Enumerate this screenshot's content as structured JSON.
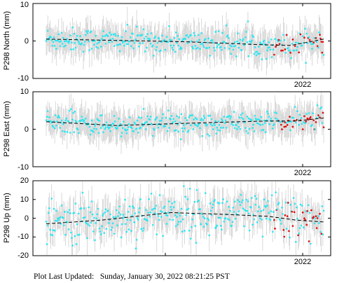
{
  "footer": {
    "label": "Plot Last Updated:",
    "value": "Sunday, January 30, 2022 08:21:25 PST"
  },
  "colors": {
    "point": "#2ee5ef",
    "recent_point": "#dd1111",
    "errorbar": "#cfcfcf",
    "trend": "#000000",
    "frame": "#000000"
  },
  "chart_data": [
    {
      "type": "scatter",
      "ylabel": "P298 North (mm)",
      "ylim": [
        -10,
        10
      ],
      "yticks": [
        "10",
        "0",
        "-10"
      ],
      "xtick_label": "2022",
      "x_range": [
        "2021-02",
        "2022-01-30"
      ],
      "trend": [
        [
          0,
          0.5
        ],
        [
          0.5,
          -0.2
        ],
        [
          0.78,
          -1.0
        ],
        [
          0.88,
          -1.2
        ],
        [
          1.0,
          0.5
        ]
      ],
      "series": [
        {
          "values_mean": 0,
          "noise": 1.6,
          "style": "cyan"
        },
        {
          "values_mean": 0,
          "noise": 1.6,
          "style": "red"
        }
      ]
    },
    {
      "type": "scatter",
      "ylabel": "P298 East (mm)",
      "ylim": [
        -10,
        10
      ],
      "yticks": [
        "10",
        "0",
        "-10"
      ],
      "xtick_label": "2022",
      "x_range": [
        "2021-02",
        "2022-01-30"
      ],
      "trend": [
        [
          0,
          2.0
        ],
        [
          0.25,
          1.0
        ],
        [
          0.6,
          1.8
        ],
        [
          0.8,
          2.2
        ],
        [
          0.9,
          2.2
        ],
        [
          1.0,
          3.0
        ]
      ],
      "series": [
        {
          "values_mean": 0,
          "noise": 1.4,
          "style": "cyan"
        },
        {
          "values_mean": 0,
          "noise": 1.4,
          "style": "red"
        }
      ]
    },
    {
      "type": "scatter",
      "ylabel": "P298 Up (mm)",
      "ylim": [
        -20,
        20
      ],
      "yticks": [
        "20",
        "10",
        "0",
        "-10",
        "-20"
      ],
      "xtick_label": "2022",
      "x_range": [
        "2021-02",
        "2022-01-30"
      ],
      "trend": [
        [
          0,
          -3.0
        ],
        [
          0.2,
          -1.0
        ],
        [
          0.45,
          3.0
        ],
        [
          0.65,
          2.0
        ],
        [
          0.8,
          1.0
        ],
        [
          0.9,
          -1.0
        ],
        [
          1.0,
          -2.0
        ]
      ],
      "series": [
        {
          "values_mean": 0,
          "noise": 6.0,
          "style": "cyan"
        },
        {
          "values_mean": 0,
          "noise": 5.0,
          "style": "red"
        }
      ]
    }
  ]
}
